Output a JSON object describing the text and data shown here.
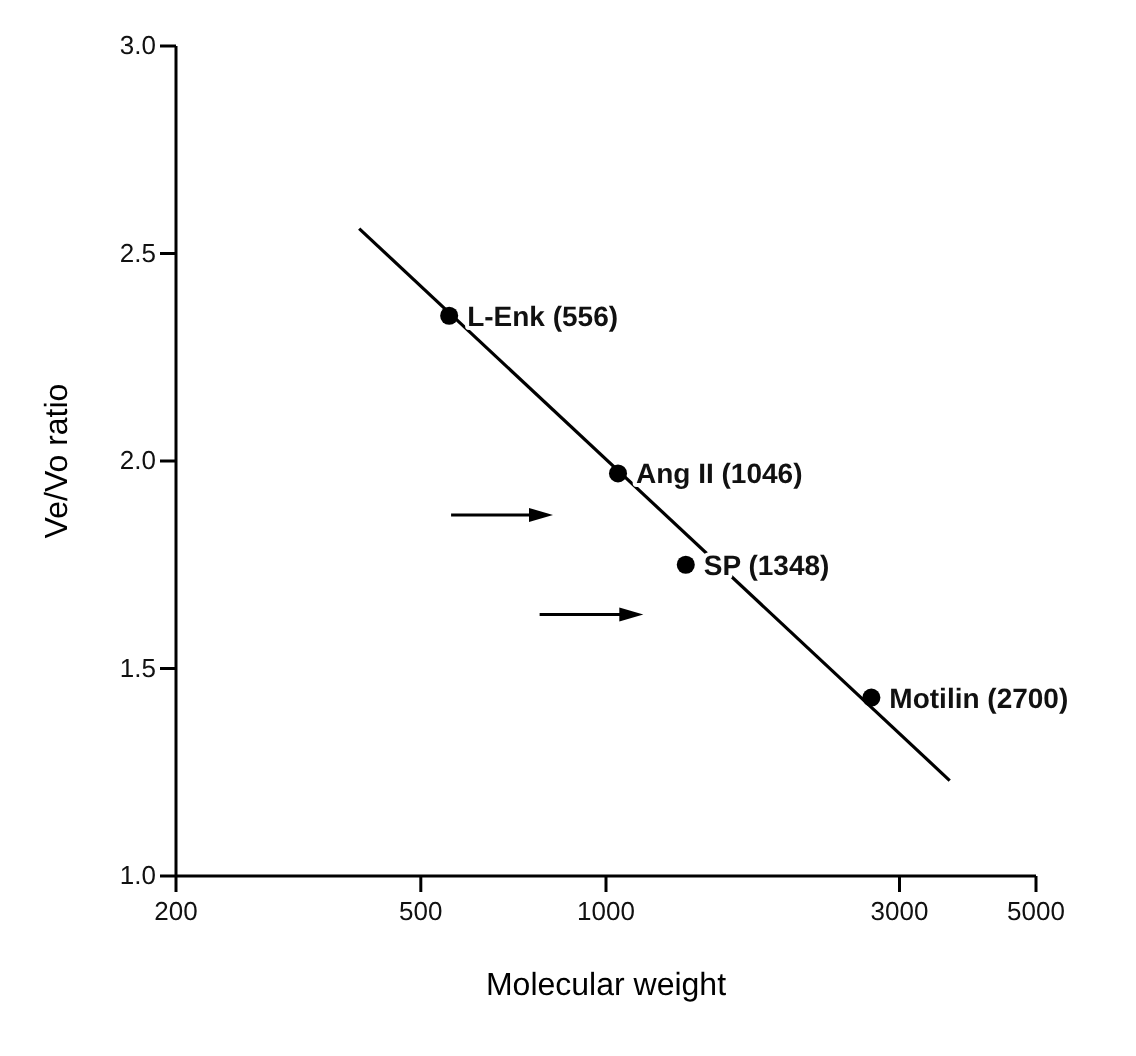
{
  "chart_data": {
    "type": "scatter",
    "xlabel": "Molecular weight",
    "ylabel": "Ve/Vo ratio",
    "log": "x",
    "xlim": [
      200,
      5000
    ],
    "xticks": [
      200,
      500,
      1000,
      3000,
      5000
    ],
    "ylim": [
      1.0,
      3.0
    ],
    "yticks": [
      {
        "value": 1.0,
        "label": "1.0"
      },
      {
        "value": 1.5,
        "label": "1.5"
      },
      {
        "value": 2.0,
        "label": "2.0"
      },
      {
        "value": 2.5,
        "label": "2.5"
      },
      {
        "value": 3.0,
        "label": "3.0"
      }
    ],
    "grid": false,
    "marker": "circle",
    "series": [
      {
        "color": "#000000",
        "x": [
          556,
          1046,
          1348,
          2700
        ],
        "values": [
          2.35,
          1.97,
          1.75,
          1.43
        ]
      },
      {
        "type": "line",
        "color": "#000000",
        "x": [
          397,
          3620
        ],
        "values": [
          2.56,
          1.23
        ],
        "marker": "none",
        "line_style": "solid"
      }
    ],
    "annotations": [
      {
        "text": "L-Enk (556)",
        "x": 556,
        "y": 2.35
      },
      {
        "text": "Ang II (1046)",
        "x": 1046,
        "y": 1.97
      },
      {
        "text": "SP (1348)",
        "x": 1348,
        "y": 1.75
      },
      {
        "text": "Motilin (2700)",
        "x": 2700,
        "y": 1.43
      }
    ]
  }
}
